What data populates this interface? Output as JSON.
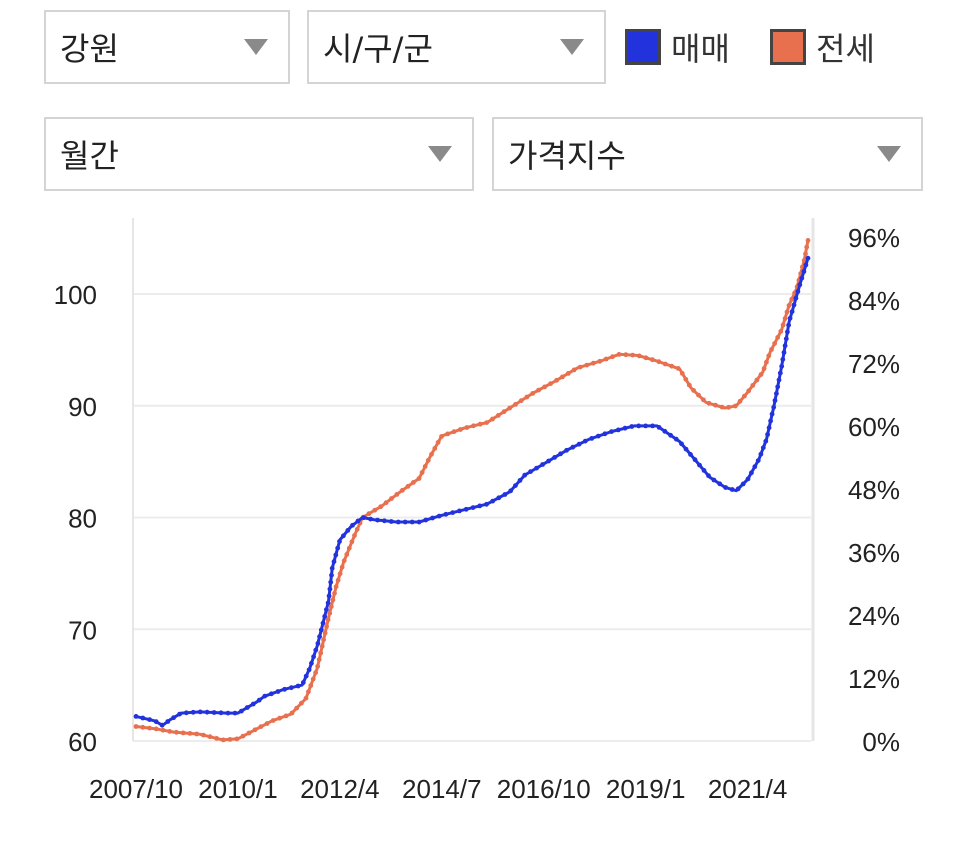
{
  "filters": {
    "region": "강원",
    "city": "시/구/군",
    "period": "월간",
    "metric": "가격지수"
  },
  "legend": {
    "sale": {
      "label": "매매",
      "color": "#2233dd"
    },
    "jeonse": {
      "label": "전세",
      "color": "#e8704f"
    }
  },
  "chart_data": {
    "type": "line",
    "x_ticks": [
      "2007/10",
      "2010/1",
      "2012/4",
      "2014/7",
      "2016/10",
      "2019/1",
      "2021/4"
    ],
    "x_range": [
      "2007/10",
      "2022/8"
    ],
    "y_left": {
      "ticks": [
        "60",
        "70",
        "80",
        "90",
        "100"
      ],
      "range": [
        60,
        105
      ]
    },
    "y_right": {
      "ticks": [
        "0%",
        "12%",
        "24%",
        "36%",
        "48%",
        "60%",
        "72%",
        "84%",
        "96%"
      ],
      "range": [
        0,
        96
      ]
    },
    "grid": true,
    "legend_position": "top-right",
    "series": [
      {
        "name": "매매",
        "color": "#2233dd",
        "points": [
          [
            "2007/10",
            62.2
          ],
          [
            "2008/3",
            61.8
          ],
          [
            "2008/5",
            61.4
          ],
          [
            "2008/7",
            61.9
          ],
          [
            "2008/10",
            62.5
          ],
          [
            "2009/3",
            62.6
          ],
          [
            "2009/10",
            62.5
          ],
          [
            "2010/1",
            62.5
          ],
          [
            "2010/6",
            63.5
          ],
          [
            "2010/8",
            64.0
          ],
          [
            "2011/1",
            64.6
          ],
          [
            "2011/6",
            65.0
          ],
          [
            "2011/8",
            66.5
          ],
          [
            "2011/10",
            68.5
          ],
          [
            "2012/1",
            72.5
          ],
          [
            "2012/2",
            75.5
          ],
          [
            "2012/4",
            78.0
          ],
          [
            "2012/7",
            79.2
          ],
          [
            "2012/10",
            80.0
          ],
          [
            "2013/1",
            79.8
          ],
          [
            "2013/7",
            79.6
          ],
          [
            "2014/1",
            79.6
          ],
          [
            "2014/7",
            80.2
          ],
          [
            "2015/1",
            80.7
          ],
          [
            "2015/7",
            81.2
          ],
          [
            "2016/1",
            82.3
          ],
          [
            "2016/5",
            83.8
          ],
          [
            "2016/10",
            84.8
          ],
          [
            "2017/4",
            86.0
          ],
          [
            "2017/10",
            87.0
          ],
          [
            "2018/4",
            87.7
          ],
          [
            "2018/10",
            88.2
          ],
          [
            "2019/4",
            88.2
          ],
          [
            "2019/10",
            86.8
          ],
          [
            "2020/2",
            85.2
          ],
          [
            "2020/6",
            83.6
          ],
          [
            "2020/10",
            82.7
          ],
          [
            "2021/1",
            82.4
          ],
          [
            "2021/4",
            83.4
          ],
          [
            "2021/7",
            85.2
          ],
          [
            "2021/9",
            87.0
          ],
          [
            "2021/11",
            90.0
          ],
          [
            "2022/1",
            93.5
          ],
          [
            "2022/3",
            97.5
          ],
          [
            "2022/6",
            101.0
          ],
          [
            "2022/8",
            103.2
          ]
        ]
      },
      {
        "name": "전세",
        "color": "#e8704f",
        "points": [
          [
            "2007/10",
            61.3
          ],
          [
            "2008/3",
            61.1
          ],
          [
            "2008/8",
            60.8
          ],
          [
            "2009/3",
            60.6
          ],
          [
            "2009/9",
            60.1
          ],
          [
            "2010/1",
            60.2
          ],
          [
            "2010/5",
            60.9
          ],
          [
            "2010/10",
            61.8
          ],
          [
            "2011/3",
            62.4
          ],
          [
            "2011/7",
            63.8
          ],
          [
            "2011/10",
            66.5
          ],
          [
            "2012/1",
            71.0
          ],
          [
            "2012/3",
            73.8
          ],
          [
            "2012/5",
            76.0
          ],
          [
            "2012/8",
            78.5
          ],
          [
            "2012/10",
            80.0
          ],
          [
            "2013/3",
            81.0
          ],
          [
            "2013/8",
            82.3
          ],
          [
            "2014/1",
            83.5
          ],
          [
            "2014/4",
            85.5
          ],
          [
            "2014/7",
            87.3
          ],
          [
            "2015/1",
            88.0
          ],
          [
            "2015/7",
            88.5
          ],
          [
            "2016/1",
            89.8
          ],
          [
            "2016/7",
            91.1
          ],
          [
            "2017/1",
            92.2
          ],
          [
            "2017/7",
            93.4
          ],
          [
            "2018/1",
            94.0
          ],
          [
            "2018/6",
            94.6
          ],
          [
            "2018/11",
            94.5
          ],
          [
            "2019/4",
            94.0
          ],
          [
            "2019/10",
            93.3
          ],
          [
            "2020/1",
            91.6
          ],
          [
            "2020/5",
            90.3
          ],
          [
            "2020/10",
            89.8
          ],
          [
            "2021/1",
            90.0
          ],
          [
            "2021/4",
            91.2
          ],
          [
            "2021/8",
            93.0
          ],
          [
            "2021/10",
            94.8
          ],
          [
            "2022/1",
            96.8
          ],
          [
            "2022/3",
            99.0
          ],
          [
            "2022/5",
            100.5
          ],
          [
            "2022/7",
            103.0
          ],
          [
            "2022/8",
            104.8
          ]
        ]
      }
    ]
  }
}
